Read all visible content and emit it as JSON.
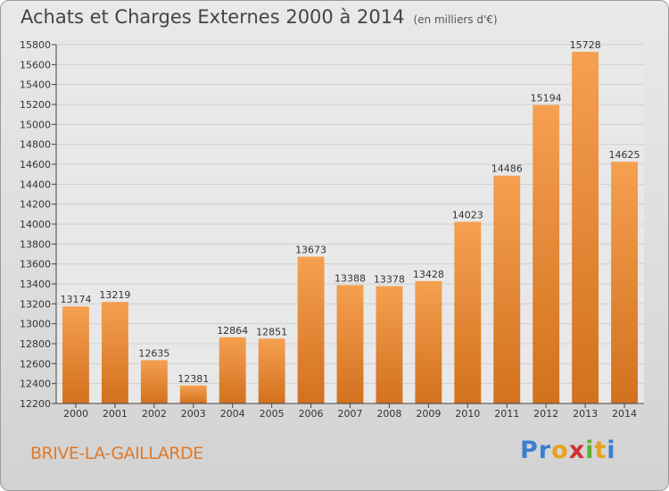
{
  "title": "Achats et Charges Externes 2000 à 2014",
  "unit": "(en milliers d'€)",
  "city": "BRIVE-LA-GAILLARDE",
  "logo": {
    "letters": [
      "P",
      "r",
      "o",
      "x",
      "i",
      "t",
      "i"
    ],
    "colors": [
      "#3a7fd0",
      "#3a7fd0",
      "#e8a020",
      "#d03030",
      "#60b030",
      "#e8a020",
      "#3a7fd0"
    ]
  },
  "chart_data": {
    "type": "bar",
    "categories": [
      "2000",
      "2001",
      "2002",
      "2003",
      "2004",
      "2005",
      "2006",
      "2007",
      "2008",
      "2009",
      "2010",
      "2011",
      "2012",
      "2013",
      "2014"
    ],
    "values": [
      13174,
      13219,
      12635,
      12381,
      12864,
      12851,
      13673,
      13388,
      13378,
      13428,
      14023,
      14486,
      15194,
      15728,
      14625
    ],
    "ylim": [
      12200,
      15800
    ],
    "yticks": [
      12200,
      12400,
      12600,
      12800,
      13000,
      13200,
      13400,
      13600,
      13800,
      14000,
      14200,
      14400,
      14600,
      14800,
      15000,
      15200,
      15400,
      15600,
      15800
    ],
    "grid": true,
    "bar_color_top": "#f5a050",
    "bar_color_bottom": "#d2711e"
  }
}
